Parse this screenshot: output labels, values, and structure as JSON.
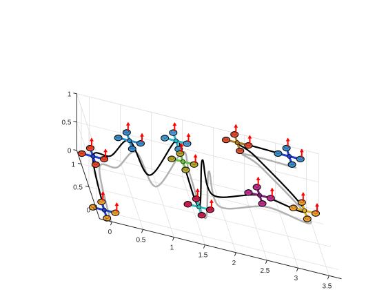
{
  "chart_data": {
    "type": "line3d",
    "title": "",
    "xlabel": "",
    "ylabel": "",
    "zlabel": "",
    "xlim": [
      -0.2,
      3.7
    ],
    "ylim": [
      -0.2,
      1.3
    ],
    "zlim": [
      0,
      1
    ],
    "grid": true,
    "view": "3d-perspective",
    "x_ticks": [
      "0",
      "0.5",
      "1",
      "1.5",
      "2",
      "2.5",
      "3",
      "3.5"
    ],
    "y_ticks": [
      "0",
      "0.5",
      "1"
    ],
    "z_ticks": [
      "0",
      "0.5",
      "1"
    ],
    "colors": {
      "trajectory": "#000000",
      "shadow": "#b0b0b0",
      "grid": "#e0e0e0",
      "axis": "#262626",
      "thrust": "#ff0000"
    },
    "quadrotors": [
      {
        "x": 0.0,
        "y": 1.05,
        "z": 0.15,
        "arm_color": "#1f3fd0",
        "rotor_color": "#e8492a"
      },
      {
        "x": -0.1,
        "y": -0.1,
        "z": 0.1,
        "arm_color": "#1f3fd0",
        "rotor_color": "#f0a030"
      },
      {
        "x": 0.6,
        "y": 1.1,
        "z": 0.55,
        "arm_color": "#2a8fd0",
        "rotor_color": "#3a8fd0"
      },
      {
        "x": 1.35,
        "y": 1.1,
        "z": 0.75,
        "arm_color": "#2ab8d0",
        "rotor_color": "#4aa0d8"
      },
      {
        "x": 1.45,
        "y": 1.05,
        "z": 0.45,
        "arm_color": "#6ac040",
        "rotor_color": "#b8a830"
      },
      {
        "x": 1.55,
        "y": 0.4,
        "z": 0.2,
        "arm_color": "#30c0c0",
        "rotor_color": "#d02050"
      },
      {
        "x": 2.35,
        "y": 1.15,
        "z": 0.95,
        "arm_color": "#b08020",
        "rotor_color": "#e05030"
      },
      {
        "x": 2.6,
        "y": 0.7,
        "z": 0.45,
        "arm_color": "#7a2070",
        "rotor_color": "#c03090"
      },
      {
        "x": 3.2,
        "y": 1.2,
        "z": 0.9,
        "arm_color": "#1f3fd0",
        "rotor_color": "#3a8fd0"
      },
      {
        "x": 3.3,
        "y": 0.6,
        "z": 0.45,
        "arm_color": "#e0b020",
        "rotor_color": "#f0a030"
      }
    ],
    "trajectory": [
      {
        "x": -0.1,
        "y": -0.1,
        "z": 0.1
      },
      {
        "x": 0.0,
        "y": 1.05,
        "z": 0.15
      },
      {
        "x": 0.3,
        "y": 1.1,
        "z": 0.2
      },
      {
        "x": 0.6,
        "y": 1.1,
        "z": 0.55
      },
      {
        "x": 0.85,
        "y": 0.8,
        "z": 0.25
      },
      {
        "x": 1.35,
        "y": 1.1,
        "z": 0.75
      },
      {
        "x": 1.45,
        "y": 1.05,
        "z": 0.45
      },
      {
        "x": 1.55,
        "y": 0.4,
        "z": 0.2
      },
      {
        "x": 1.75,
        "y": 1.0,
        "z": 0.6
      },
      {
        "x": 1.85,
        "y": 0.7,
        "z": 0.25
      },
      {
        "x": 2.6,
        "y": 0.7,
        "z": 0.45
      },
      {
        "x": 3.3,
        "y": 0.6,
        "z": 0.45
      },
      {
        "x": 2.6,
        "y": 1.0,
        "z": 0.9
      },
      {
        "x": 2.35,
        "y": 1.15,
        "z": 0.95
      },
      {
        "x": 3.2,
        "y": 1.2,
        "z": 0.9
      }
    ]
  }
}
